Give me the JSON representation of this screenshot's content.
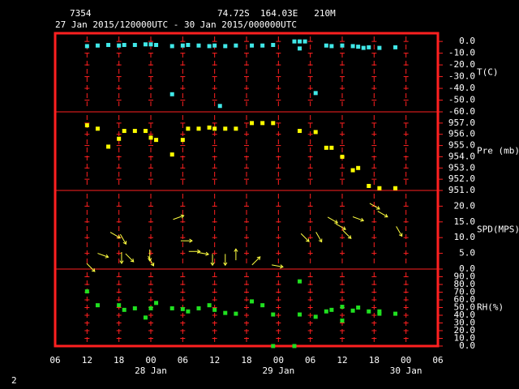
{
  "header": {
    "station": "7354",
    "location": "74.72S  164.03E   210M",
    "period": "27 Jan 2015/120000UTC - 30 Jan 2015/000000UTC",
    "page": "2"
  },
  "xlim": [
    6,
    78
  ],
  "xticks": [
    {
      "value": 6,
      "label": "06"
    },
    {
      "value": 12,
      "label": "12"
    },
    {
      "value": 18,
      "label": "18"
    },
    {
      "value": 24,
      "label": "00"
    },
    {
      "value": 30,
      "label": "06"
    },
    {
      "value": 36,
      "label": "12"
    },
    {
      "value": 42,
      "label": "18"
    },
    {
      "value": 48,
      "label": "00"
    },
    {
      "value": 54,
      "label": "06"
    },
    {
      "value": 60,
      "label": "12"
    },
    {
      "value": 66,
      "label": "18"
    },
    {
      "value": 72,
      "label": "00"
    },
    {
      "value": 78,
      "label": "06"
    }
  ],
  "date_labels": [
    {
      "value": 24,
      "label": "28 Jan"
    },
    {
      "value": 48,
      "label": "29 Jan"
    },
    {
      "value": 72,
      "label": "30 Jan"
    }
  ],
  "chart_data": [
    {
      "type": "scatter",
      "ylabel": "T(C)",
      "color": "#40e8e8",
      "ylim": [
        -60,
        7
      ],
      "yticks": [
        {
          "value": 0,
          "label": "0.0"
        },
        {
          "value": -10,
          "label": "-10.0"
        },
        {
          "value": -20,
          "label": "-20.0"
        },
        {
          "value": -30,
          "label": "-30.0"
        },
        {
          "value": -40,
          "label": "-40.0"
        },
        {
          "value": -50,
          "label": "-50.0"
        },
        {
          "value": -60,
          "label": "-60.0"
        }
      ],
      "x": [
        12,
        14,
        16,
        18,
        19,
        21,
        23,
        24,
        25,
        28,
        28,
        30,
        31,
        33,
        35,
        36,
        37,
        38,
        40,
        43,
        45,
        47,
        51,
        52,
        53,
        52,
        55,
        57,
        58,
        60,
        62,
        63,
        64,
        65,
        67,
        70
      ],
      "values": [
        -4,
        -3.5,
        -3,
        -3.5,
        -3,
        -3,
        -2.5,
        -2.5,
        -3,
        -4,
        -45,
        -3.5,
        -3,
        -3.5,
        -4,
        -3.5,
        -55,
        -4,
        -3.5,
        -3.5,
        -3.5,
        -3,
        0,
        0,
        0,
        -6,
        -44,
        -3.5,
        -4,
        -3.5,
        -4,
        -4.5,
        -5.5,
        -5,
        -5.5,
        -5
      ]
    },
    {
      "type": "scatter",
      "ylabel": "Pre (mb)",
      "color": "#ffff00",
      "ylim": [
        951,
        958
      ],
      "yticks": [
        {
          "value": 957,
          "label": "957.0"
        },
        {
          "value": 956,
          "label": "956.0"
        },
        {
          "value": 955,
          "label": "955.0"
        },
        {
          "value": 954,
          "label": "954.0"
        },
        {
          "value": 953,
          "label": "953.0"
        },
        {
          "value": 952,
          "label": "952.0"
        },
        {
          "value": 951,
          "label": "951.0"
        }
      ],
      "x": [
        12,
        14,
        16,
        18,
        19,
        21,
        23,
        24,
        25,
        28,
        30,
        31,
        33,
        35,
        36,
        38,
        40,
        43,
        45,
        47,
        52,
        55,
        57,
        58,
        60,
        62,
        63,
        65,
        67,
        70
      ],
      "values": [
        956.8,
        956.5,
        954.9,
        955.6,
        956.3,
        956.3,
        956.3,
        955.7,
        955.5,
        954.2,
        955.5,
        956.5,
        956.5,
        956.6,
        956.5,
        956.5,
        956.5,
        957,
        957,
        957,
        956.3,
        956.2,
        954.8,
        954.8,
        954,
        952.8,
        953,
        951.4,
        951.2,
        951.2
      ]
    },
    {
      "type": "vector",
      "ylabel": "SPD(MPS)",
      "color": "#ffff40",
      "ylim": [
        0,
        25
      ],
      "yticks": [
        {
          "value": 20,
          "label": "20.0"
        },
        {
          "value": 15,
          "label": "15.0"
        },
        {
          "value": 10,
          "label": "10.0"
        },
        {
          "value": 5,
          "label": "5.0"
        },
        {
          "value": 0,
          "label": "0.0"
        }
      ],
      "x": [
        12.7,
        15,
        17.3,
        18.8,
        18.5,
        20,
        23.8,
        24,
        29.2,
        30.7,
        32.2,
        33.8,
        35.6,
        38,
        40,
        43.8,
        47.8,
        53,
        55.6,
        58.2,
        59.7,
        60.9,
        63,
        66.1,
        67.6,
        70.7
      ],
      "values": [
        0.5,
        4.4,
        10.8,
        9.5,
        3.6,
        3.6,
        4.4,
        2.6,
        16.4,
        9,
        5.6,
        5,
        3,
        3,
        4.6,
        2.6,
        1,
        10,
        10.2,
        15.6,
        13.5,
        11,
        16,
        20,
        17.5,
        12
      ],
      "directions": [
        45,
        20,
        30,
        60,
        90,
        45,
        90,
        60,
        -20,
        0,
        0,
        10,
        90,
        90,
        -90,
        -45,
        10,
        45,
        60,
        30,
        30,
        45,
        20,
        30,
        30,
        60
      ]
    },
    {
      "type": "scatter",
      "ylabel": "RH(%)",
      "color": "#20e020",
      "ylim": [
        0,
        100
      ],
      "yticks": [
        {
          "value": 90,
          "label": "90.0"
        },
        {
          "value": 80,
          "label": "80.0"
        },
        {
          "value": 70,
          "label": "70.0"
        },
        {
          "value": 60,
          "label": "60.0"
        },
        {
          "value": 50,
          "label": "50.0"
        },
        {
          "value": 40,
          "label": "40.0"
        },
        {
          "value": 30,
          "label": "30.0"
        },
        {
          "value": 20,
          "label": "20.0"
        },
        {
          "value": 10,
          "label": "10.0"
        },
        {
          "value": 0,
          "label": "0.0"
        }
      ],
      "x": [
        12,
        14,
        18,
        19,
        21,
        23,
        24,
        25,
        28,
        30,
        31,
        33,
        35,
        36,
        38,
        40,
        43,
        45,
        47,
        47,
        51,
        52,
        52,
        55,
        57,
        58,
        60,
        60,
        62,
        63,
        65,
        67,
        67,
        70
      ],
      "values": [
        71,
        53,
        53,
        47,
        49,
        37,
        49,
        56,
        49,
        48,
        45,
        49,
        53,
        47,
        43,
        42,
        58,
        53,
        41,
        0,
        0,
        84,
        41,
        38,
        45,
        47,
        51,
        33,
        46,
        50,
        45,
        42,
        45,
        42
      ]
    }
  ]
}
